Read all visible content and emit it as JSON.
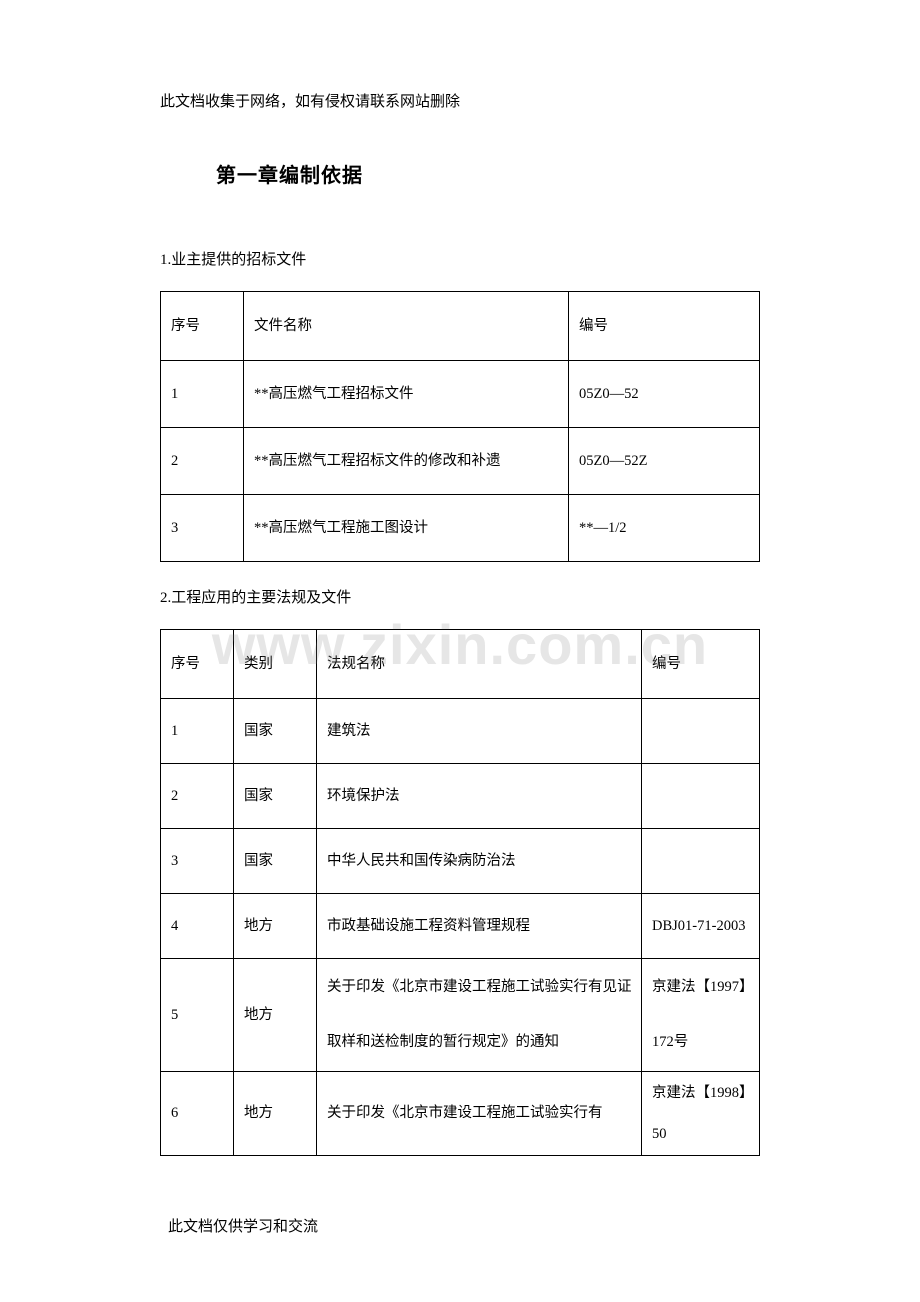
{
  "header_note": "此文档收集于网络，如有侵权请联系网站删除",
  "footer_note": "此文档仅供学习和交流",
  "watermark": "www.zixin.com.cn",
  "chapter_title": "第一章编制依据",
  "section1": {
    "title": "1.业主提供的招标文件",
    "columns": [
      "序号",
      "文件名称",
      "编号"
    ],
    "rows": [
      [
        "1",
        "**高压燃气工程招标文件",
        "05Z0—52"
      ],
      [
        "2",
        "**高压燃气工程招标文件的修改和补遗",
        "05Z0—52Z"
      ],
      [
        "3",
        "**高压燃气工程施工图设计",
        "**—1/2"
      ]
    ]
  },
  "section2": {
    "title": "2.工程应用的主要法规及文件",
    "columns": [
      "序号",
      "类别",
      "法规名称",
      "编号"
    ],
    "rows": [
      [
        "1",
        "国家",
        "建筑法",
        ""
      ],
      [
        "2",
        "国家",
        "环境保护法",
        ""
      ],
      [
        "3",
        "国家",
        "中华人民共和国传染病防治法",
        ""
      ],
      [
        "4",
        "地方",
        "市政基础设施工程资料管理规程",
        "DBJ01-71-2003"
      ],
      [
        "5",
        "地方",
        "关于印发《北京市建设工程施工试验实行有见证取样和送检制度的暂行规定》的通知",
        "京建法【1997】 172号"
      ],
      [
        "6",
        "地方",
        "关于印发《北京市建设工程施工试验实行有",
        "京建法【1998】50"
      ]
    ]
  }
}
